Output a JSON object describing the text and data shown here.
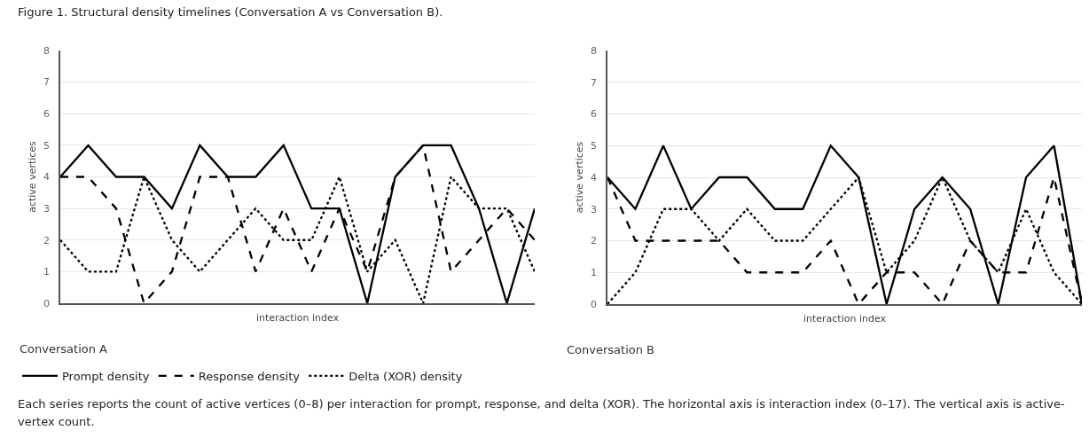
{
  "chart_data": [
    {
      "type": "line",
      "title": "Figure 1. Structural density timelines (Conversation A vs Conversation B).",
      "subtitle": "Conversation A",
      "xlabel": "interaction index",
      "ylabel": "active vertices",
      "categories": [
        null,
        null,
        null,
        null,
        null,
        null,
        null,
        null,
        null,
        null,
        null,
        null,
        null,
        null,
        null,
        null,
        null,
        null
      ],
      "ylim": [
        0,
        8
      ],
      "yticks": [
        0,
        1,
        2,
        3,
        4,
        5,
        6,
        7,
        8
      ],
      "grid": "y",
      "legend": "bottom",
      "tick_labels": "y",
      "marker": "none",
      "series": [
        {
          "name": "Prompt density",
          "color": "#000000",
          "line_style": "solid",
          "values": [
            4,
            5,
            4,
            4,
            3,
            5,
            4,
            4,
            5,
            3,
            3,
            0,
            4,
            5,
            5,
            3,
            0,
            3
          ]
        },
        {
          "name": "Response density",
          "color": "#000000",
          "line_style": "dashed",
          "values": [
            4,
            4,
            3,
            0,
            1,
            4,
            4,
            1,
            3,
            1,
            3,
            1,
            4,
            5,
            1,
            2,
            3,
            2
          ]
        },
        {
          "name": "Delta (XOR) density",
          "color": "#000000",
          "line_style": "dotted",
          "values": [
            2,
            1,
            1,
            4,
            2,
            1,
            2,
            3,
            2,
            2,
            4,
            1,
            2,
            0,
            4,
            3,
            3,
            1
          ]
        }
      ],
      "annotations": [
        "Each series reports the count of active vertices (0–8) per interaction for prompt, response, and delta (XOR). The horizontal axis is interaction index (0–17). The vertical axis is active-vertex count."
      ]
    },
    {
      "type": "line",
      "subtitle": "Conversation B",
      "xlabel": "interaction index",
      "ylabel": "active vertices",
      "categories": [
        null,
        null,
        null,
        null,
        null,
        null,
        null,
        null,
        null,
        null,
        null,
        null,
        null,
        null,
        null,
        null,
        null,
        null
      ],
      "ylim": [
        0,
        8
      ],
      "yticks": [
        0,
        1,
        2,
        3,
        4,
        5,
        6,
        7,
        8
      ],
      "grid": "y",
      "tick_labels": "y",
      "marker": "none",
      "series": [
        {
          "color": "#000000",
          "line_style": "solid",
          "values": [
            4,
            3,
            5,
            3,
            4,
            4,
            3,
            3,
            5,
            4,
            0,
            3,
            4,
            3,
            0,
            4,
            5,
            0
          ]
        },
        {
          "color": "#000000",
          "line_style": "dashed",
          "values": [
            4,
            2,
            2,
            2,
            2,
            1,
            1,
            1,
            2,
            0,
            1,
            1,
            0,
            2,
            1,
            1,
            4,
            0
          ]
        },
        {
          "color": "#000000",
          "line_style": "dotted",
          "values": [
            0,
            1,
            3,
            3,
            2,
            3,
            2,
            2,
            3,
            4,
            1,
            2,
            4,
            2,
            1,
            3,
            1,
            0
          ]
        }
      ]
    }
  ]
}
